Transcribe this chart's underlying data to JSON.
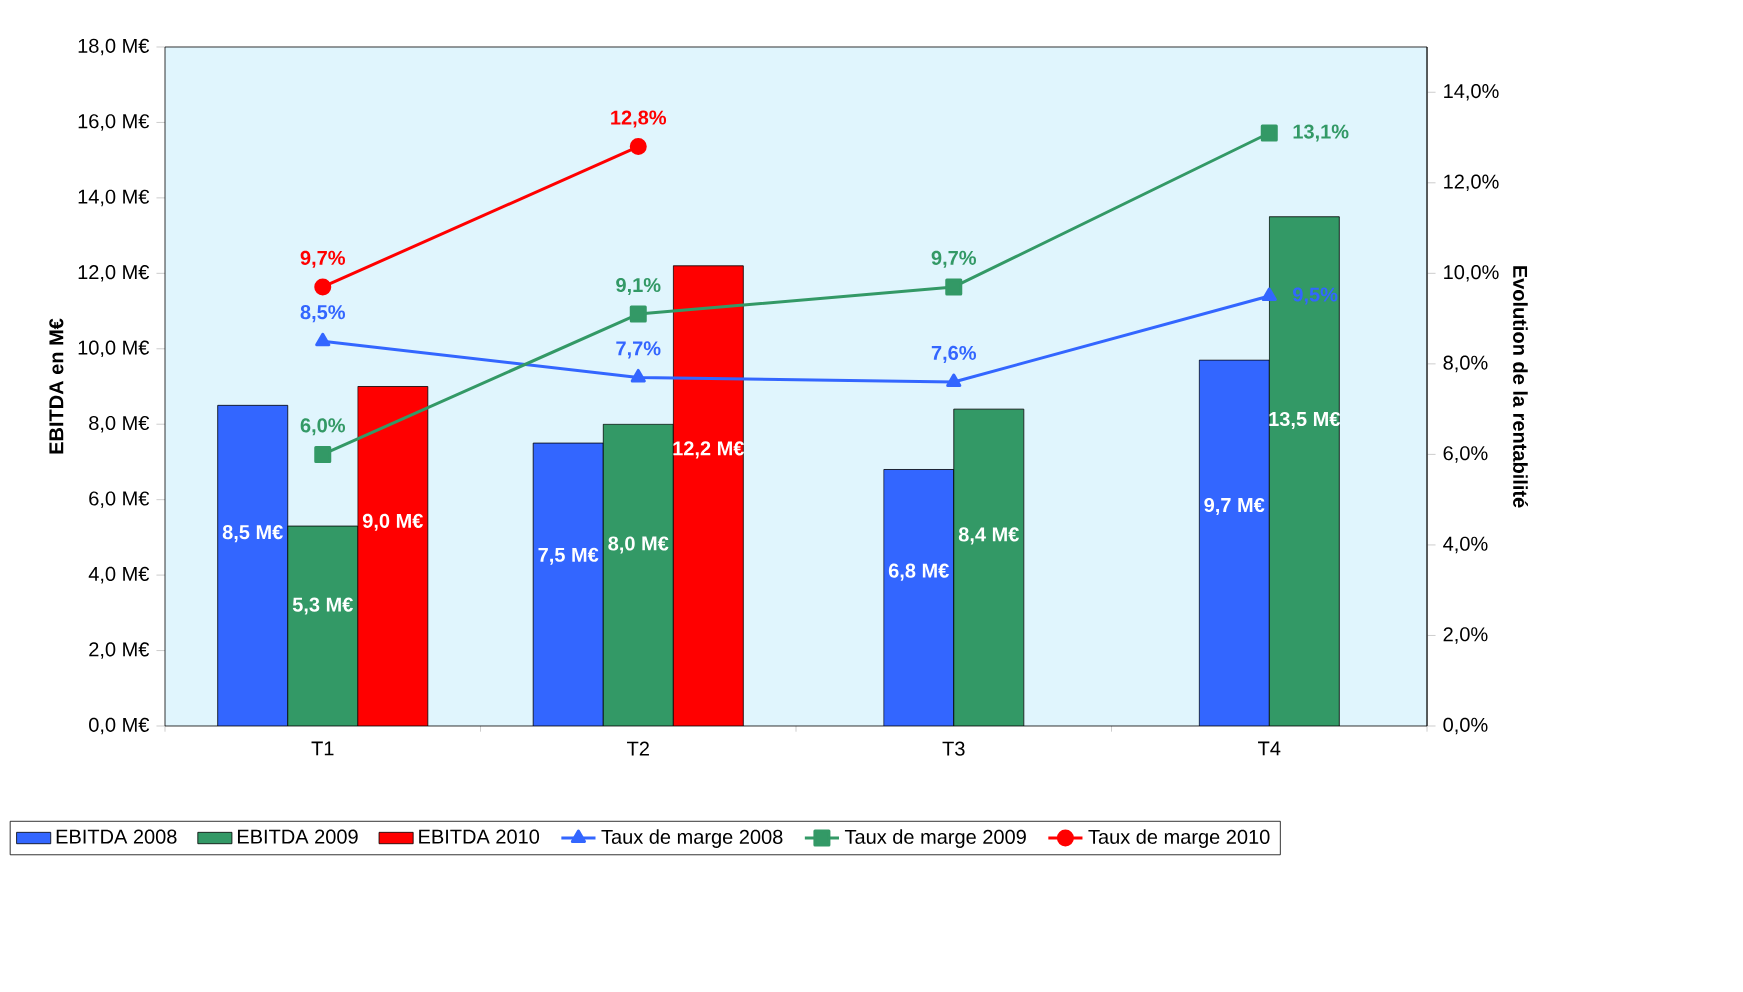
{
  "chart_data": {
    "type": "bar",
    "categories": [
      "T1",
      "T2",
      "T3",
      "T4"
    ],
    "ylabel": "EBITDA en M€",
    "y2label": "Evolution de la rentabilité",
    "ylim": [
      0,
      18
    ],
    "yticks": [
      {
        "value": 0,
        "label": "0,0 M€"
      },
      {
        "value": 2,
        "label": "2,0 M€"
      },
      {
        "value": 4,
        "label": "4,0 M€"
      },
      {
        "value": 6,
        "label": "6,0 M€"
      },
      {
        "value": 8,
        "label": "8,0 M€"
      },
      {
        "value": 10,
        "label": "10,0 M€"
      },
      {
        "value": 12,
        "label": "12,0 M€"
      },
      {
        "value": 14,
        "label": "14,0 M€"
      },
      {
        "value": 16,
        "label": "16,0 M€"
      },
      {
        "value": 18,
        "label": "18,0 M€"
      }
    ],
    "y2lim": [
      0,
      15
    ],
    "y2ticks": [
      {
        "value": 0,
        "label": "0,0%"
      },
      {
        "value": 2,
        "label": "2,0%"
      },
      {
        "value": 4,
        "label": "4,0%"
      },
      {
        "value": 6,
        "label": "6,0%"
      },
      {
        "value": 8,
        "label": "8,0%"
      },
      {
        "value": 10,
        "label": "10,0%"
      },
      {
        "value": 12,
        "label": "12,0%"
      },
      {
        "value": 14,
        "label": "14,0%"
      }
    ],
    "legend": "bottom",
    "series": [
      {
        "name": "EBITDA 2008",
        "color": "#3366ff",
        "values": [
          8.5,
          7.5,
          6.8,
          9.7
        ],
        "value_labels": [
          "8,5 M€",
          "7,5 M€",
          "6,8 M€",
          "9,7 M€"
        ]
      },
      {
        "name": "EBITDA 2009",
        "color": "#339966",
        "values": [
          5.3,
          8.0,
          8.4,
          13.5
        ],
        "value_labels": [
          "5,3 M€",
          "8,0 M€",
          "8,4 M€",
          "13,5 M€"
        ]
      },
      {
        "name": "EBITDA 2010",
        "color": "#ff0000",
        "values": [
          9.0,
          12.2,
          null,
          null
        ],
        "value_labels": [
          "9,0 M€",
          "12,2 M€",
          null,
          null
        ]
      },
      {
        "name": "Taux de marge 2008",
        "type": "line",
        "axis": "y2",
        "marker": "triangle",
        "color": "#3366ff",
        "values": [
          8.5,
          7.7,
          7.6,
          9.5
        ],
        "value_labels": [
          "8,5%",
          "7,7%",
          "7,6%",
          "9,5%"
        ]
      },
      {
        "name": "Taux de marge 2009",
        "type": "line",
        "axis": "y2",
        "marker": "square",
        "color": "#339966",
        "values": [
          6.0,
          9.1,
          9.7,
          13.1
        ],
        "value_labels": [
          "6,0%",
          "9,1%",
          "9,7%",
          "13,1%"
        ]
      },
      {
        "name": "Taux de marge 2010",
        "type": "line",
        "axis": "y2",
        "marker": "circle",
        "color": "#ff0000",
        "values": [
          9.7,
          12.8,
          null,
          null
        ],
        "value_labels": [
          "9,7%",
          "12,8%",
          null,
          null
        ]
      }
    ]
  }
}
